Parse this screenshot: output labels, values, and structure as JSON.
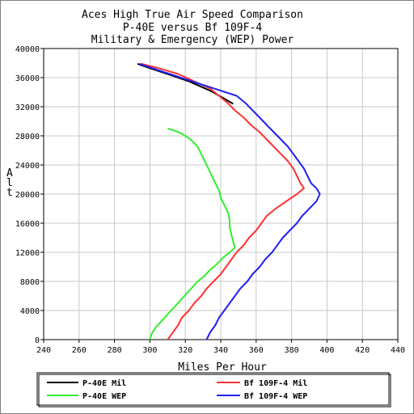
{
  "chart_data": {
    "type": "line",
    "title": [
      "Aces High True Air Speed Comparison",
      "P-40E versus Bf 109F-4",
      "Military & Emergency (WEP) Power"
    ],
    "xlabel": "Miles Per Hour",
    "ylabel": "Alt",
    "xlim": [
      240,
      440
    ],
    "ylim": [
      0,
      40000
    ],
    "xticks": [
      240,
      260,
      280,
      300,
      320,
      340,
      360,
      380,
      400,
      420,
      440
    ],
    "yticks": [
      0,
      4000,
      8000,
      12000,
      16000,
      20000,
      24000,
      28000,
      32000,
      36000,
      40000
    ],
    "grid": true,
    "legend_position": "bottom",
    "series": [
      {
        "name": "P-40E Mil",
        "color": "#000000",
        "points": [
          [
            293,
            37900
          ],
          [
            300,
            37300
          ],
          [
            310,
            36500
          ],
          [
            322,
            35500
          ],
          [
            335,
            34100
          ],
          [
            347,
            32400
          ]
        ]
      },
      {
        "name": "Bf 109F-4 Mil",
        "color": "#ff3333",
        "points": [
          [
            310,
            0
          ],
          [
            313,
            1000
          ],
          [
            316,
            2000
          ],
          [
            318,
            3000
          ],
          [
            322,
            4000
          ],
          [
            325,
            5000
          ],
          [
            329,
            6000
          ],
          [
            332,
            7000
          ],
          [
            336,
            8000
          ],
          [
            340,
            9000
          ],
          [
            343,
            10000
          ],
          [
            346,
            11000
          ],
          [
            349,
            12000
          ],
          [
            353,
            13000
          ],
          [
            356,
            14000
          ],
          [
            360,
            15000
          ],
          [
            363,
            16000
          ],
          [
            366,
            17000
          ],
          [
            371,
            18000
          ],
          [
            377,
            19000
          ],
          [
            383,
            20000
          ],
          [
            387,
            20800
          ],
          [
            385,
            21500
          ],
          [
            383,
            22500
          ],
          [
            381,
            23500
          ],
          [
            378,
            24500
          ],
          [
            374,
            25500
          ],
          [
            370,
            26500
          ],
          [
            366,
            27500
          ],
          [
            362,
            28500
          ],
          [
            357,
            29500
          ],
          [
            353,
            30500
          ],
          [
            348,
            31500
          ],
          [
            344,
            32500
          ],
          [
            339,
            33500
          ],
          [
            334,
            34500
          ],
          [
            325,
            35500
          ],
          [
            316,
            36500
          ],
          [
            305,
            37300
          ],
          [
            295,
            37900
          ]
        ]
      },
      {
        "name": "P-40E WEP",
        "color": "#33ee33",
        "points": [
          [
            300,
            0
          ],
          [
            301,
            800
          ],
          [
            303,
            1600
          ],
          [
            306,
            2400
          ],
          [
            309,
            3200
          ],
          [
            312,
            4000
          ],
          [
            315,
            4800
          ],
          [
            318,
            5600
          ],
          [
            321,
            6400
          ],
          [
            324,
            7200
          ],
          [
            327,
            8000
          ],
          [
            331,
            8800
          ],
          [
            334,
            9600
          ],
          [
            338,
            10400
          ],
          [
            341,
            11200
          ],
          [
            345,
            12000
          ],
          [
            348,
            12600
          ],
          [
            347,
            13500
          ],
          [
            346,
            14500
          ],
          [
            345,
            15500
          ],
          [
            345,
            16500
          ],
          [
            344,
            17500
          ],
          [
            342,
            18500
          ],
          [
            340,
            19500
          ],
          [
            339,
            20500
          ],
          [
            337,
            21500
          ],
          [
            335,
            22500
          ],
          [
            333,
            23500
          ],
          [
            331,
            24500
          ],
          [
            329,
            25500
          ],
          [
            327,
            26500
          ],
          [
            323,
            27500
          ],
          [
            318,
            28300
          ],
          [
            313,
            28800
          ],
          [
            310,
            29000
          ]
        ]
      },
      {
        "name": "Bf 109F-4 WEP",
        "color": "#2222ee",
        "points": [
          [
            332,
            0
          ],
          [
            334,
            1000
          ],
          [
            337,
            2000
          ],
          [
            339,
            3000
          ],
          [
            342,
            4000
          ],
          [
            345,
            5000
          ],
          [
            348,
            6000
          ],
          [
            351,
            7000
          ],
          [
            355,
            8000
          ],
          [
            358,
            9000
          ],
          [
            362,
            10000
          ],
          [
            365,
            11000
          ],
          [
            369,
            12000
          ],
          [
            372,
            13000
          ],
          [
            375,
            14000
          ],
          [
            379,
            15000
          ],
          [
            383,
            16000
          ],
          [
            386,
            17000
          ],
          [
            390,
            18000
          ],
          [
            394,
            19000
          ],
          [
            396,
            20000
          ],
          [
            394,
            20800
          ],
          [
            391,
            21500
          ],
          [
            389,
            22500
          ],
          [
            387,
            23500
          ],
          [
            384,
            24500
          ],
          [
            381,
            25500
          ],
          [
            378,
            26500
          ],
          [
            374,
            27500
          ],
          [
            370,
            28500
          ],
          [
            366,
            29500
          ],
          [
            362,
            30500
          ],
          [
            358,
            31500
          ],
          [
            354,
            32500
          ],
          [
            349,
            33500
          ],
          [
            335,
            34600
          ],
          [
            320,
            35800
          ],
          [
            305,
            37000
          ],
          [
            294,
            37900
          ]
        ]
      }
    ]
  }
}
